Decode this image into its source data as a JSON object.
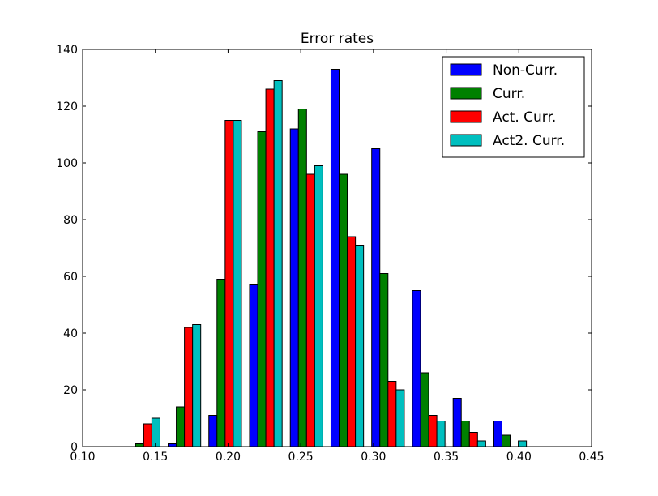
{
  "chart_data": {
    "type": "bar",
    "title": "Error rates",
    "xlabel": "",
    "ylabel": "",
    "xlim": [
      0.1,
      0.45
    ],
    "ylim": [
      0,
      140
    ],
    "xticks": [
      0.1,
      0.15,
      0.2,
      0.25,
      0.3,
      0.35,
      0.4,
      0.45
    ],
    "xtick_labels": [
      "0.10",
      "0.15",
      "0.20",
      "0.25",
      "0.30",
      "0.35",
      "0.40",
      "0.45"
    ],
    "yticks": [
      0,
      20,
      40,
      60,
      80,
      100,
      120,
      140
    ],
    "ytick_labels": [
      "0",
      "20",
      "40",
      "60",
      "80",
      "100",
      "120",
      "140"
    ],
    "bin_edges": [
      0.128,
      0.156,
      0.184,
      0.212,
      0.24,
      0.268,
      0.296,
      0.324,
      0.352,
      0.38,
      0.408
    ],
    "grid": false,
    "legend_position": "top-right",
    "series": [
      {
        "name": "Non-Curr.",
        "color": "#0000ff",
        "values": [
          0,
          1,
          11,
          57,
          112,
          133,
          105,
          55,
          17,
          9
        ]
      },
      {
        "name": "Curr.",
        "color": "#008000",
        "values": [
          1,
          14,
          59,
          111,
          119,
          96,
          61,
          26,
          9,
          4
        ]
      },
      {
        "name": "Act. Curr.",
        "color": "#ff0000",
        "values": [
          8,
          42,
          115,
          126,
          96,
          74,
          23,
          11,
          5,
          0
        ]
      },
      {
        "name": "Act2. Curr.",
        "color": "#00bfbf",
        "values": [
          10,
          43,
          115,
          129,
          99,
          71,
          20,
          9,
          2,
          2
        ]
      }
    ]
  }
}
